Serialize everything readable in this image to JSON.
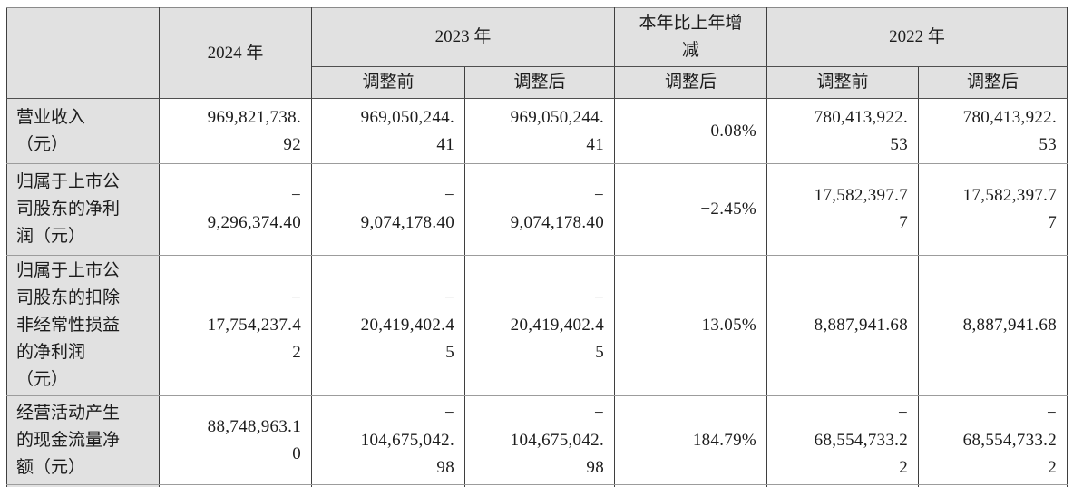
{
  "style": {
    "header_bg": "#e1e1e1",
    "grid_vertical": "#3f3f3f",
    "grid_horizontal": "#9c9c9c",
    "text_color": "#1c1c1c"
  },
  "table": {
    "header": {
      "empty": "",
      "y2024": "2024 年",
      "y2023": "2023 年",
      "yoy": "本年比上年增\n减",
      "y2022": "2022 年",
      "sub": [
        "调整前",
        "调整后",
        "调整后",
        "调整前",
        "调整后"
      ]
    },
    "rows": [
      {
        "label": "营业收入\n（元）",
        "v2024": "969,821,738.\n92",
        "v2023_pre": "969,050,244.\n41",
        "v2023_post": "969,050,244.\n41",
        "yoy": "0.08%",
        "v2022_pre": "780,413,922.\n53",
        "v2022_post": "780,413,922.\n53"
      },
      {
        "label": "归属于上市公\n司股东的净利\n润（元）",
        "v2024": "−\n9,296,374.40",
        "v2023_pre": "−\n9,074,178.40",
        "v2023_post": "−\n9,074,178.40",
        "yoy": "−2.45%",
        "v2022_pre": "17,582,397.7\n7",
        "v2022_post": "17,582,397.7\n7"
      },
      {
        "label": "归属于上市公\n司股东的扣除\n非经常性损益\n的净利润\n（元）",
        "v2024": "−\n17,754,237.4\n2",
        "v2023_pre": "−\n20,419,402.4\n5",
        "v2023_post": "−\n20,419,402.4\n5",
        "yoy": "13.05%",
        "v2022_pre": "8,887,941.68",
        "v2022_post": "8,887,941.68"
      },
      {
        "label": "经营活动产生\n的现金流量净\n额（元）",
        "v2024": "88,748,963.1\n0",
        "v2023_pre": "−\n104,675,042.\n98",
        "v2023_post": "−\n104,675,042.\n98",
        "yoy": "184.79%",
        "v2022_pre": "−\n68,554,733.2\n2",
        "v2022_post": "−\n68,554,733.2\n2"
      }
    ]
  }
}
